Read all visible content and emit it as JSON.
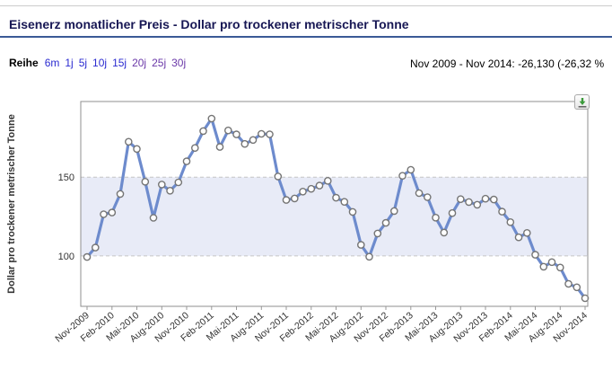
{
  "header": {
    "title": "Eisenerz monatlicher Preis - Dollar pro trockener metrischer Tonne"
  },
  "controls": {
    "series_label": "Reihe",
    "ranges": [
      {
        "label": "6m",
        "visited": false
      },
      {
        "label": "1j",
        "visited": false
      },
      {
        "label": "5j",
        "visited": false
      },
      {
        "label": "10j",
        "visited": false
      },
      {
        "label": "15j",
        "visited": false
      },
      {
        "label": "20j",
        "visited": true
      },
      {
        "label": "25j",
        "visited": true
      },
      {
        "label": "30j",
        "visited": true
      }
    ],
    "summary": "Nov 2009 - Nov 2014: -26,130 (-26,32 %"
  },
  "toolbar": {
    "download_icon": "download-chart"
  },
  "chart_data": {
    "type": "line",
    "title": "Eisenerz monatlicher Preis - Dollar pro trockener metrischer Tonne",
    "xlabel": "",
    "ylabel": "Dollar pro trockener metrischer Tonne",
    "ylim": [
      68,
      198
    ],
    "yticks": [
      100,
      150
    ],
    "band": [
      100,
      150
    ],
    "tick_every": 3,
    "grid": "dashed-horizontal",
    "legend": "none",
    "x": [
      "Nov-2009",
      "Dez-2009",
      "Jan-2010",
      "Feb-2010",
      "Mär-2010",
      "Apr-2010",
      "Mai-2010",
      "Jun-2010",
      "Jul-2010",
      "Aug-2010",
      "Sep-2010",
      "Okt-2010",
      "Nov-2010",
      "Dez-2010",
      "Jan-2011",
      "Feb-2011",
      "Mär-2011",
      "Apr-2011",
      "Mai-2011",
      "Jun-2011",
      "Jul-2011",
      "Aug-2011",
      "Sep-2011",
      "Okt-2011",
      "Nov-2011",
      "Dez-2011",
      "Jan-2012",
      "Feb-2012",
      "Mär-2012",
      "Apr-2012",
      "Mai-2012",
      "Jun-2012",
      "Jul-2012",
      "Aug-2012",
      "Sep-2012",
      "Okt-2012",
      "Nov-2012",
      "Dez-2012",
      "Jan-2013",
      "Feb-2013",
      "Mär-2013",
      "Apr-2013",
      "Mai-2013",
      "Jun-2013",
      "Jul-2013",
      "Aug-2013",
      "Sep-2013",
      "Okt-2013",
      "Nov-2013",
      "Dez-2013",
      "Jan-2014",
      "Feb-2014",
      "Mär-2014",
      "Apr-2014",
      "Mai-2014",
      "Jun-2014",
      "Jul-2014",
      "Aug-2014",
      "Sep-2014",
      "Okt-2014",
      "Nov-2014"
    ],
    "values": [
      99.28,
      105.28,
      126.43,
      127.51,
      139.33,
      172.47,
      167.87,
      147.08,
      124.17,
      145.32,
      141.38,
      146.68,
      160.0,
      168.53,
      179.23,
      187.18,
      169.16,
      179.62,
      177.15,
      171.06,
      173.58,
      177.45,
      177.21,
      150.43,
      135.52,
      136.46,
      140.8,
      142.58,
      144.66,
      147.65,
      136.96,
      134.29,
      127.94,
      107.02,
      99.47,
      114.26,
      120.95,
      128.5,
      150.85,
      154.64,
      139.87,
      137.25,
      124.25,
      114.82,
      127.19,
      136.05,
      134.17,
      132.5,
      136.32,
      135.79,
      128.12,
      121.42,
      111.81,
      114.58,
      100.7,
      93.12,
      96.08,
      92.61,
      82.27,
      80.09,
      73.15
    ],
    "colors": {
      "line": "#6d8bcd",
      "marker_fill": "#ffffff",
      "marker_stroke": "#757575",
      "band": "#e8ebf7",
      "grid": "#c6c6c6",
      "axis": "#8f8f8f",
      "text": "#333333"
    }
  }
}
